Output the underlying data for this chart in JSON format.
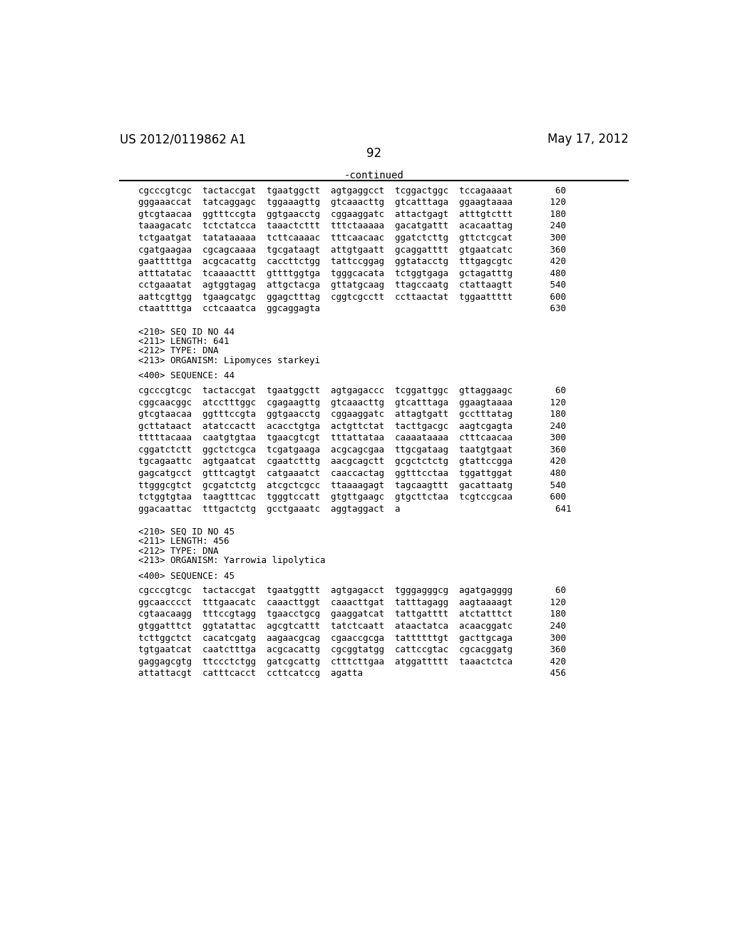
{
  "header_left": "US 2012/0119862 A1",
  "header_right": "May 17, 2012",
  "page_number": "92",
  "continued_label": "-continued",
  "background_color": "#ffffff",
  "text_color": "#000000",
  "lines": [
    {
      "text": "cgcccgtcgc  tactaccgat  tgaatggctt  agtgaggcct  tcggactggc  tccagaaaat        60",
      "type": "seq"
    },
    {
      "text": "gggaaaccat  tatcaggagc  tggaaagttg  gtcaaacttg  gtcatttaga  ggaagtaaaa       120",
      "type": "seq"
    },
    {
      "text": "gtcgtaacaa  ggtttccgta  ggtgaacctg  cggaaggatc  attactgagt  atttgtcttt       180",
      "type": "seq"
    },
    {
      "text": "taaagacatc  tctctatcca  taaactcttt  tttctaaaaa  gacatgattt  acacaattag       240",
      "type": "seq"
    },
    {
      "text": "tctgaatgat  tatataaaaa  tcttcaaaac  tttcaacaac  ggatctcttg  gttctcgcat       300",
      "type": "seq"
    },
    {
      "text": "cgatgaagaa  cgcagcaaaa  tgcgataagt  attgtgaatt  gcaggatttt  gtgaatcatc       360",
      "type": "seq"
    },
    {
      "text": "gaatttttga  acgcacattg  caccttctgg  tattccggag  ggtatacctg  tttgagcgtc       420",
      "type": "seq"
    },
    {
      "text": "atttatatac  tcaaaacttt  gttttggtga  tgggcacata  tctggtgaga  gctagatttg       480",
      "type": "seq"
    },
    {
      "text": "cctgaaatat  agtggtagag  attgctacga  gttatgcaag  ttagccaatg  ctattaagtt       540",
      "type": "seq"
    },
    {
      "text": "aattcgttgg  tgaagcatgc  ggagctttag  cggtcgcctt  ccttaactat  tggaattttt       600",
      "type": "seq"
    },
    {
      "text": "ctaattttga  cctcaaatca  ggcaggagta                                           630",
      "type": "seq"
    },
    {
      "text": "",
      "type": "blank"
    },
    {
      "text": "",
      "type": "blank"
    },
    {
      "text": "<210> SEQ ID NO 44",
      "type": "meta"
    },
    {
      "text": "<211> LENGTH: 641",
      "type": "meta"
    },
    {
      "text": "<212> TYPE: DNA",
      "type": "meta"
    },
    {
      "text": "<213> ORGANISM: Lipomyces starkeyi",
      "type": "meta"
    },
    {
      "text": "",
      "type": "blank"
    },
    {
      "text": "<400> SEQUENCE: 44",
      "type": "meta"
    },
    {
      "text": "",
      "type": "blank"
    },
    {
      "text": "cgcccgtcgc  tactaccgat  tgaatggctt  agtgagaccc  tcggattggc  gttaggaagc        60",
      "type": "seq"
    },
    {
      "text": "cggcaacggc  atcctttggc  cgagaagttg  gtcaaacttg  gtcatttaga  ggaagtaaaa       120",
      "type": "seq"
    },
    {
      "text": "gtcgtaacaa  ggtttccgta  ggtgaacctg  cggaaggatc  attagtgatt  gcctttatag       180",
      "type": "seq"
    },
    {
      "text": "gcttataact  atatccactt  acacctgtga  actgttctat  tacttgacgc  aagtcgagta       240",
      "type": "seq"
    },
    {
      "text": "tttttacaaa  caatgtgtaa  tgaacgtcgt  tttattataa  caaaataaaa  ctttcaacaa       300",
      "type": "seq"
    },
    {
      "text": "cggatctctt  ggctctcgca  tcgatgaaga  acgcagcgaa  ttgcgataag  taatgtgaat       360",
      "type": "seq"
    },
    {
      "text": "tgcagaattc  agtgaatcat  cgaatctttg  aacgcagctt  gcgctctctg  gtattccgga       420",
      "type": "seq"
    },
    {
      "text": "gagcatgcct  gtttcagtgt  catgaaatct  caaccactag  ggtttcctaa  tggattggat       480",
      "type": "seq"
    },
    {
      "text": "ttgggcgtct  gcgatctctg  atcgctcgcc  ttaaaagagt  tagcaagttt  gacattaatg       540",
      "type": "seq"
    },
    {
      "text": "tctggtgtaa  taagtttcac  tgggtccatt  gtgttgaagc  gtgcttctaa  tcgtccgcaa       600",
      "type": "seq"
    },
    {
      "text": "ggacaattac  tttgactctg  gcctgaaatc  aggtaggact  a                             641",
      "type": "seq"
    },
    {
      "text": "",
      "type": "blank"
    },
    {
      "text": "",
      "type": "blank"
    },
    {
      "text": "<210> SEQ ID NO 45",
      "type": "meta"
    },
    {
      "text": "<211> LENGTH: 456",
      "type": "meta"
    },
    {
      "text": "<212> TYPE: DNA",
      "type": "meta"
    },
    {
      "text": "<213> ORGANISM: Yarrowia lipolytica",
      "type": "meta"
    },
    {
      "text": "",
      "type": "blank"
    },
    {
      "text": "<400> SEQUENCE: 45",
      "type": "meta"
    },
    {
      "text": "",
      "type": "blank"
    },
    {
      "text": "cgcccgtcgc  tactaccgat  tgaatggttt  agtgagacct  tgggagggcg  agatgagggg        60",
      "type": "seq"
    },
    {
      "text": "ggcaacccct  tttgaacatc  caaacttggt  caaacttgat  tatttagagg  aagtaaaagt       120",
      "type": "seq"
    },
    {
      "text": "cgtaacaagg  tttccgtagg  tgaacctgcg  gaaggatcat  tattgatttt  atctatttct       180",
      "type": "seq"
    },
    {
      "text": "gtggatttct  ggtatattac  agcgtcattt  tatctcaatt  ataactatca  acaacggatc       240",
      "type": "seq"
    },
    {
      "text": "tcttggctct  cacatcgatg  aagaacgcag  cgaaccgcga  tattttttgt  gacttgcaga       300",
      "type": "seq"
    },
    {
      "text": "tgtgaatcat  caatctttga  acgcacattg  cgcggtatgg  cattccgtac  cgcacggatg       360",
      "type": "seq"
    },
    {
      "text": "gaggagcgtg  ttccctctgg  gatcgcattg  ctttcttgaa  atggattttt  taaactctca       420",
      "type": "seq"
    },
    {
      "text": "attattacgt  catttcacct  ccttcatccg  agatta                                   456",
      "type": "seq"
    }
  ]
}
